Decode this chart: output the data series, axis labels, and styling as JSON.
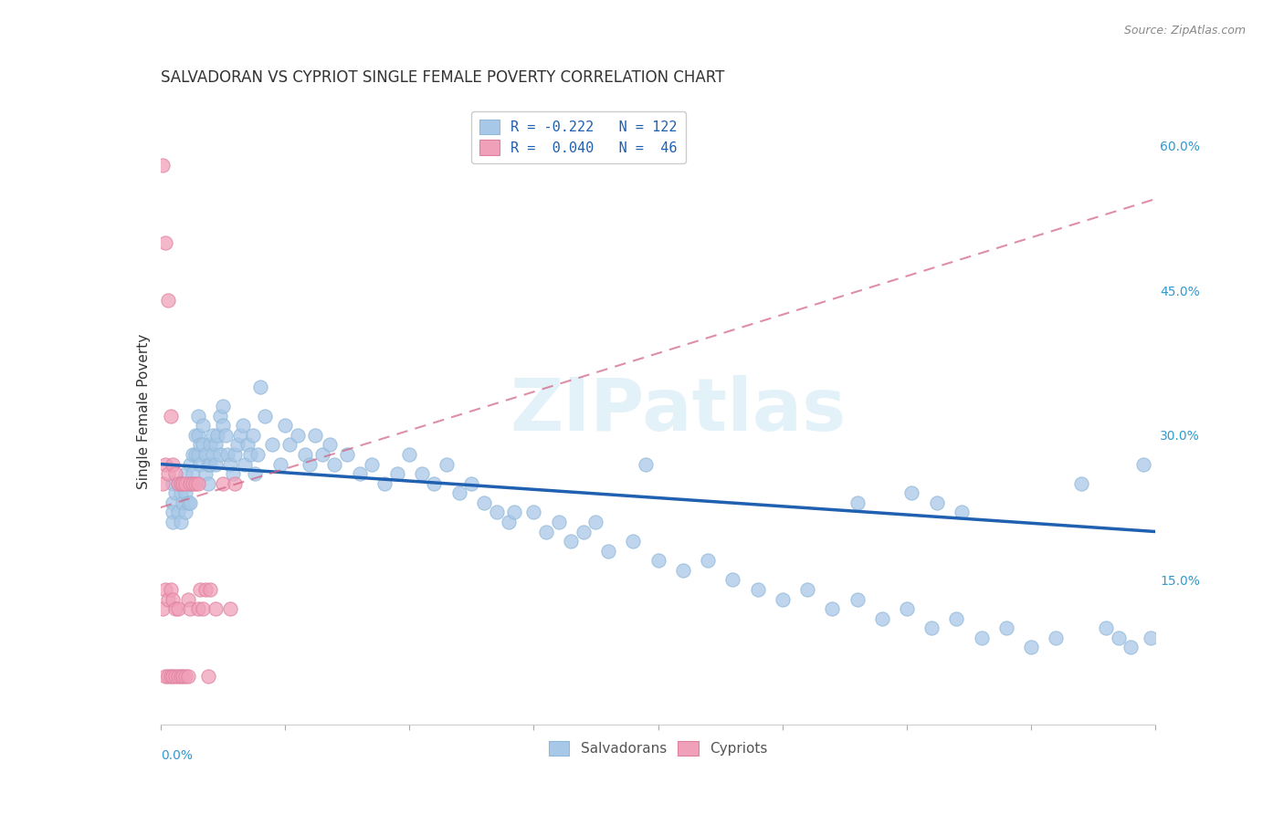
{
  "title": "SALVADORAN VS CYPRIOT SINGLE FEMALE POVERTY CORRELATION CHART",
  "source": "Source: ZipAtlas.com",
  "ylabel": "Single Female Poverty",
  "right_yticks": [
    "60.0%",
    "45.0%",
    "30.0%",
    "15.0%"
  ],
  "right_ytick_vals": [
    0.6,
    0.45,
    0.3,
    0.15
  ],
  "legend_blue_label": "R = -0.222   N = 122",
  "legend_pink_label": "R =  0.040   N =  46",
  "legend_salvadorans": "Salvadorans",
  "legend_cypriots": "Cypriots",
  "blue_color": "#a8c8e8",
  "blue_line_color": "#2060b0",
  "pink_color": "#f0a0b8",
  "pink_line_color": "#d06080",
  "watermark": "ZIPatlas",
  "background_color": "#ffffff",
  "grid_color": "#dddddd",
  "xlim": [
    0.0,
    0.4
  ],
  "ylim": [
    0.0,
    0.65
  ],
  "blue_trend_x": [
    0.0,
    0.4
  ],
  "blue_trend_y": [
    0.27,
    0.2
  ],
  "pink_trend_x": [
    0.0,
    0.4
  ],
  "pink_trend_y": [
    0.225,
    0.545
  ],
  "blue_scatter_x": [
    0.005,
    0.005,
    0.005,
    0.005,
    0.006,
    0.007,
    0.007,
    0.008,
    0.008,
    0.009,
    0.01,
    0.01,
    0.01,
    0.011,
    0.011,
    0.012,
    0.012,
    0.012,
    0.013,
    0.013,
    0.014,
    0.014,
    0.015,
    0.015,
    0.015,
    0.016,
    0.016,
    0.017,
    0.017,
    0.018,
    0.018,
    0.019,
    0.019,
    0.02,
    0.02,
    0.021,
    0.021,
    0.022,
    0.022,
    0.023,
    0.024,
    0.024,
    0.025,
    0.025,
    0.026,
    0.027,
    0.028,
    0.029,
    0.03,
    0.031,
    0.032,
    0.033,
    0.034,
    0.035,
    0.036,
    0.037,
    0.038,
    0.039,
    0.04,
    0.042,
    0.045,
    0.048,
    0.05,
    0.052,
    0.055,
    0.058,
    0.06,
    0.062,
    0.065,
    0.068,
    0.07,
    0.075,
    0.08,
    0.085,
    0.09,
    0.095,
    0.1,
    0.105,
    0.11,
    0.115,
    0.12,
    0.125,
    0.13,
    0.135,
    0.14,
    0.15,
    0.155,
    0.16,
    0.165,
    0.17,
    0.175,
    0.18,
    0.19,
    0.2,
    0.21,
    0.22,
    0.23,
    0.24,
    0.25,
    0.26,
    0.27,
    0.28,
    0.29,
    0.3,
    0.31,
    0.32,
    0.33,
    0.34,
    0.35,
    0.36,
    0.37,
    0.38,
    0.385,
    0.39,
    0.395,
    0.398,
    0.302,
    0.312,
    0.322,
    0.28,
    0.142,
    0.195
  ],
  "blue_scatter_y": [
    0.25,
    0.23,
    0.22,
    0.21,
    0.24,
    0.25,
    0.22,
    0.24,
    0.21,
    0.23,
    0.26,
    0.24,
    0.22,
    0.25,
    0.23,
    0.27,
    0.25,
    0.23,
    0.28,
    0.26,
    0.3,
    0.28,
    0.32,
    0.3,
    0.28,
    0.29,
    0.27,
    0.31,
    0.29,
    0.28,
    0.26,
    0.27,
    0.25,
    0.29,
    0.27,
    0.3,
    0.28,
    0.29,
    0.27,
    0.3,
    0.32,
    0.28,
    0.33,
    0.31,
    0.3,
    0.28,
    0.27,
    0.26,
    0.28,
    0.29,
    0.3,
    0.31,
    0.27,
    0.29,
    0.28,
    0.3,
    0.26,
    0.28,
    0.35,
    0.32,
    0.29,
    0.27,
    0.31,
    0.29,
    0.3,
    0.28,
    0.27,
    0.3,
    0.28,
    0.29,
    0.27,
    0.28,
    0.26,
    0.27,
    0.25,
    0.26,
    0.28,
    0.26,
    0.25,
    0.27,
    0.24,
    0.25,
    0.23,
    0.22,
    0.21,
    0.22,
    0.2,
    0.21,
    0.19,
    0.2,
    0.21,
    0.18,
    0.19,
    0.17,
    0.16,
    0.17,
    0.15,
    0.14,
    0.13,
    0.14,
    0.12,
    0.13,
    0.11,
    0.12,
    0.1,
    0.11,
    0.09,
    0.1,
    0.08,
    0.09,
    0.25,
    0.1,
    0.09,
    0.08,
    0.27,
    0.09,
    0.24,
    0.23,
    0.22,
    0.23,
    0.22,
    0.27
  ],
  "pink_scatter_x": [
    0.001,
    0.001,
    0.001,
    0.002,
    0.002,
    0.002,
    0.002,
    0.003,
    0.003,
    0.003,
    0.003,
    0.004,
    0.004,
    0.004,
    0.005,
    0.005,
    0.005,
    0.006,
    0.006,
    0.006,
    0.007,
    0.007,
    0.007,
    0.008,
    0.008,
    0.009,
    0.009,
    0.01,
    0.01,
    0.011,
    0.011,
    0.012,
    0.012,
    0.013,
    0.014,
    0.015,
    0.015,
    0.016,
    0.017,
    0.018,
    0.019,
    0.02,
    0.022,
    0.025,
    0.028,
    0.03
  ],
  "pink_scatter_y": [
    0.58,
    0.25,
    0.12,
    0.5,
    0.27,
    0.14,
    0.05,
    0.44,
    0.26,
    0.13,
    0.05,
    0.32,
    0.14,
    0.05,
    0.27,
    0.13,
    0.05,
    0.26,
    0.12,
    0.05,
    0.25,
    0.12,
    0.05,
    0.25,
    0.05,
    0.25,
    0.05,
    0.25,
    0.05,
    0.13,
    0.05,
    0.25,
    0.12,
    0.25,
    0.25,
    0.25,
    0.12,
    0.14,
    0.12,
    0.14,
    0.05,
    0.14,
    0.12,
    0.25,
    0.12,
    0.25
  ]
}
